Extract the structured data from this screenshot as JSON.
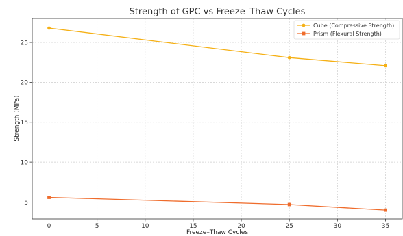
{
  "chart_data": {
    "type": "line",
    "title": "Strength of GPC vs Freeze–Thaw Cycles",
    "xlabel": "Freeze–Thaw Cycles",
    "ylabel": "Strength (MPa)",
    "xlim": [
      -1.75,
      36.75
    ],
    "ylim": [
      2.9,
      28.0
    ],
    "xticks": [
      0,
      5,
      10,
      15,
      20,
      25,
      30,
      35
    ],
    "yticks": [
      5,
      10,
      15,
      20,
      25
    ],
    "grid": true,
    "legend_position": "top-right",
    "series": [
      {
        "name": "Cube (Compressive Strength)",
        "color": "#f5b015",
        "marker": "circle",
        "x": [
          0,
          25,
          35
        ],
        "y": [
          26.8,
          23.1,
          22.1
        ]
      },
      {
        "name": "Prism (Flexural Strength)",
        "color": "#ef6c2c",
        "marker": "square",
        "x": [
          0,
          25,
          35
        ],
        "y": [
          5.6,
          4.7,
          4.0
        ]
      }
    ]
  }
}
